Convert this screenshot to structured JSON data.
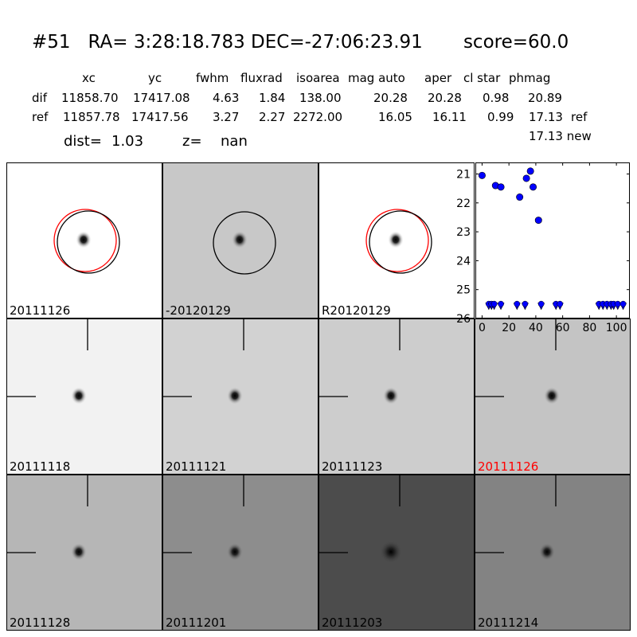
{
  "header": {
    "title": "#51   RA= 3:28:18.783 DEC=-27:06:23.91       score=60.0"
  },
  "table": {
    "columns": [
      "xc",
      "yc",
      "fwhm",
      "fluxrad",
      "isoarea",
      "mag auto",
      "aper",
      "cl star",
      "phmag"
    ],
    "rows": [
      {
        "name": "dif",
        "values": [
          "11858.70",
          "17417.08",
          "4.63",
          "1.84",
          "138.00",
          "20.28",
          "20.28",
          "0.98",
          "20.89"
        ],
        "suffix": ""
      },
      {
        "name": "ref",
        "values": [
          "11857.78",
          "17417.56",
          "3.27",
          "2.27",
          "2272.00",
          "16.05",
          "16.11",
          "0.99",
          "17.13"
        ],
        "suffix": "ref"
      }
    ],
    "extra_line": "17.13 new"
  },
  "info": {
    "dist_label": "dist=",
    "dist_value": "1.03",
    "z_label": "z=",
    "z_value": "nan"
  },
  "colors": {
    "highlight": "#ff0000",
    "marker": "#0000ff",
    "circle_ref": "#ff0000",
    "circle": "#000000"
  },
  "panels": [
    {
      "label": "20111126",
      "bg": "#ffffff",
      "circles": "red+black",
      "cross": false,
      "highlight": false
    },
    {
      "label": "-20120129",
      "bg": "#c8c8c8",
      "circles": "black",
      "cross": false,
      "highlight": false
    },
    {
      "label": "R20120129",
      "bg": "#ffffff",
      "circles": "red+black",
      "cross": false,
      "highlight": false
    },
    {
      "label": "20111118",
      "bg": "#f2f2f2",
      "circles": "none",
      "cross": true,
      "highlight": false
    },
    {
      "label": "20111121",
      "bg": "#d2d2d2",
      "circles": "none",
      "cross": true,
      "highlight": false
    },
    {
      "label": "20111123",
      "bg": "#cdcdcd",
      "circles": "none",
      "cross": true,
      "highlight": false
    },
    {
      "label": "20111126",
      "bg": "#c4c4c4",
      "circles": "none",
      "cross": true,
      "highlight": true
    },
    {
      "label": "20111128",
      "bg": "#b6b6b6",
      "circles": "none",
      "cross": true,
      "highlight": false
    },
    {
      "label": "20111201",
      "bg": "#8d8d8d",
      "circles": "none",
      "cross": true,
      "highlight": false
    },
    {
      "label": "20111203",
      "bg": "#4c4c4c",
      "circles": "none",
      "cross": true,
      "highlight": false
    },
    {
      "label": "20111214",
      "bg": "#838383",
      "circles": "none",
      "cross": true,
      "highlight": false
    }
  ],
  "chart_data": {
    "type": "scatter",
    "xlim": [
      -5,
      110
    ],
    "ylim": [
      26,
      20.6
    ],
    "y_inverted": true,
    "xticks": [
      0,
      20,
      40,
      60,
      80,
      100
    ],
    "yticks": [
      21,
      22,
      23,
      24,
      25,
      26
    ],
    "series": [
      {
        "marker": "circle",
        "points": [
          [
            0,
            21.05
          ],
          [
            10,
            21.4
          ],
          [
            14,
            21.45
          ],
          [
            28,
            21.8
          ],
          [
            33,
            21.15
          ],
          [
            36,
            20.9
          ],
          [
            38,
            21.45
          ],
          [
            42,
            22.6
          ]
        ]
      },
      {
        "marker": "down-arrow",
        "points": [
          [
            5,
            25.55
          ],
          [
            7,
            25.55
          ],
          [
            9,
            25.55
          ],
          [
            14,
            25.55
          ],
          [
            26,
            25.55
          ],
          [
            32,
            25.55
          ],
          [
            44,
            25.55
          ],
          [
            55,
            25.55
          ],
          [
            58,
            25.55
          ],
          [
            87,
            25.55
          ],
          [
            90,
            25.55
          ],
          [
            93,
            25.55
          ],
          [
            96,
            25.55
          ],
          [
            98,
            25.55
          ],
          [
            101,
            25.55
          ],
          [
            105,
            25.55
          ]
        ]
      }
    ]
  }
}
